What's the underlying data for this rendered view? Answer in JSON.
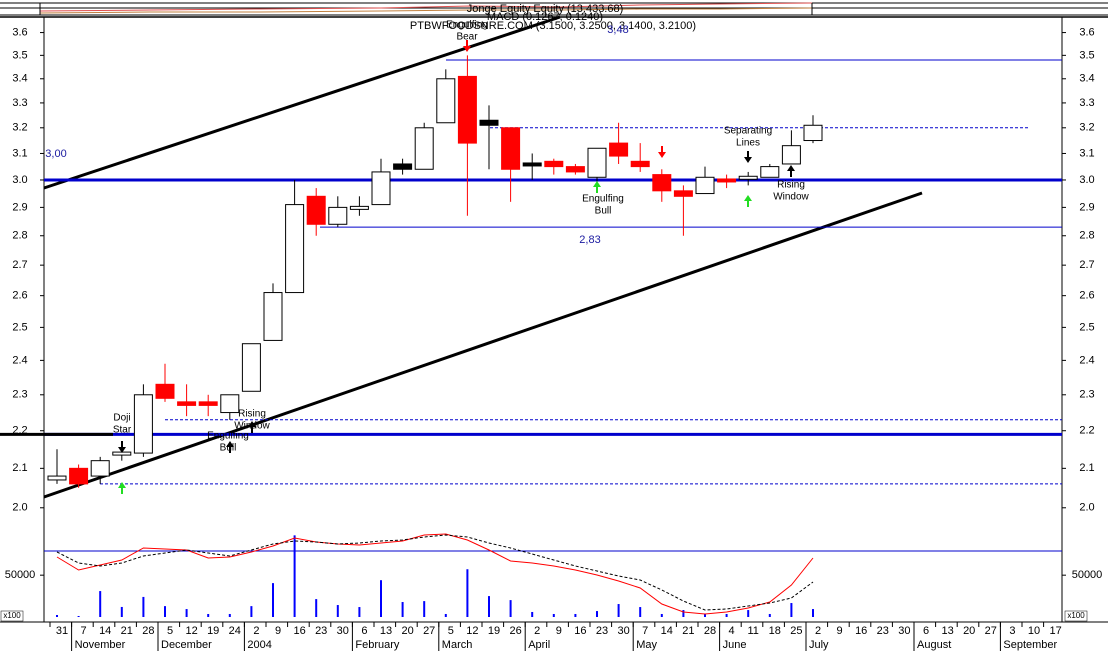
{
  "chart_data": {
    "type": "candlestick",
    "header": [
      "Jonge Equity Equity (13.433.68)",
      "MACD (0.1267, 0.1240)",
      "PTBWFOODSNRE.COM (3.1500, 3.2500, 3.1400, 3.2100)"
    ],
    "categories": [
      "31",
      "7",
      "14",
      "21",
      "28",
      "5",
      "12",
      "19",
      "24",
      "2",
      "9",
      "16",
      "23",
      "30",
      "6",
      "13",
      "20",
      "27",
      "5",
      "12",
      "19",
      "26",
      "2",
      "9",
      "16",
      "23",
      "30",
      "7",
      "14",
      "21",
      "28",
      "4",
      "11",
      "18",
      "25",
      "2",
      "9",
      "16",
      "23",
      "30",
      "6",
      "13",
      "20",
      "27",
      "3",
      "10",
      "17"
    ],
    "months": [
      "November",
      "December",
      "2004",
      "February",
      "March",
      "April",
      "May",
      "June",
      "July",
      "August",
      "September"
    ],
    "log_scale": true,
    "ylim": [
      1.97,
      3.67
    ],
    "yticks": [
      {
        "value": 2,
        "label": "2.0"
      },
      2.1,
      2.2,
      2.3,
      2.4,
      2.5,
      2.6,
      2.7,
      2.8,
      2.9,
      {
        "value": 3,
        "label": "3.0"
      },
      3.1,
      3.2,
      3.3,
      3.4,
      3.5,
      3.6
    ],
    "candles": {
      "open": [
        2.07,
        2.1,
        2.08,
        2.14,
        2.14,
        2.33,
        2.28,
        2.28,
        2.25,
        2.31,
        2.46,
        2.61,
        2.94,
        2.84,
        2.9,
        2.91,
        3.06,
        3.04,
        3.22,
        3.41,
        3.23,
        3.2,
        3.06,
        3.07,
        3.05,
        3.01,
        3.14,
        3.07,
        3.02,
        2.96,
        2.95,
        3.0,
        3.0,
        3.01,
        3.06,
        3.15,
        null,
        null,
        null,
        null,
        null,
        null,
        null,
        null,
        null,
        null,
        null
      ],
      "high": [
        2.15,
        2.11,
        2.13,
        2.16,
        2.33,
        2.39,
        2.33,
        2.3,
        2.3,
        2.45,
        2.64,
        3.0,
        2.97,
        2.94,
        2.94,
        3.08,
        3.08,
        3.22,
        3.44,
        3.5,
        3.29,
        3.2,
        3.1,
        3.08,
        3.06,
        3.12,
        3.22,
        3.14,
        3.04,
        2.98,
        3.05,
        3.02,
        3.03,
        3.06,
        3.19,
        3.25,
        null,
        null,
        null,
        null,
        null,
        null,
        null,
        null,
        null,
        null,
        null
      ],
      "low": [
        2.06,
        2.05,
        2.06,
        2.12,
        2.13,
        2.28,
        2.24,
        2.24,
        2.23,
        2.31,
        2.46,
        2.61,
        2.8,
        2.83,
        2.87,
        2.91,
        3.02,
        3.04,
        3.22,
        2.87,
        3.04,
        2.92,
        3.0,
        3.02,
        3.02,
        2.98,
        3.06,
        3.03,
        2.92,
        2.8,
        2.95,
        2.97,
        2.98,
        3.01,
        3.06,
        3.14,
        null,
        null,
        null,
        null,
        null,
        null,
        null,
        null,
        null,
        null,
        null
      ],
      "close": [
        2.08,
        2.06,
        2.12,
        2.14,
        2.3,
        2.29,
        2.27,
        2.27,
        2.3,
        2.45,
        2.61,
        2.91,
        2.84,
        2.9,
        2.9,
        3.03,
        3.04,
        3.2,
        3.4,
        3.14,
        3.21,
        3.04,
        3.06,
        3.05,
        3.03,
        3.12,
        3.09,
        3.05,
        2.96,
        2.94,
        3.01,
        2.99,
        3.01,
        3.05,
        3.13,
        3.21,
        null,
        null,
        null,
        null,
        null,
        null,
        null,
        null,
        null,
        null,
        null
      ],
      "colors": [
        "#ffffff",
        "#ff0000",
        "#ffffff",
        "#ffffff",
        "#ffffff",
        "#ff0000",
        "#ff0000",
        "#ff0000",
        "#ffffff",
        "#ffffff",
        "#ffffff",
        "#ffffff",
        "#ff0000",
        "#ffffff",
        "#ffffff",
        "#ffffff",
        "#000000",
        "#ffffff",
        "#ffffff",
        "#ff0000",
        "#000000",
        "#ff0000",
        "#000000",
        "#ff0000",
        "#ff0000",
        "#ffffff",
        "#ff0000",
        "#ff0000",
        "#ff0000",
        "#ff0000",
        "#ffffff",
        "#ff0000",
        "#ffffff",
        "#ffffff",
        "#ffffff",
        "#ffffff",
        null,
        null,
        null,
        null,
        null,
        null,
        null,
        null,
        null,
        null,
        null
      ]
    },
    "levels": [
      {
        "value": 3,
        "label": "3,00",
        "color": "#0000cc",
        "width": 3
      },
      {
        "value": 2.19,
        "color": "#0000cc",
        "width": 3
      },
      {
        "value": 3.48,
        "label": "3,48",
        "color": "#0000cc",
        "width": 1
      },
      {
        "value": 2.83,
        "label": "2,83",
        "color": "#0000cc",
        "width": 1
      },
      {
        "value": 3.2,
        "color": "#0000cc",
        "width": 1,
        "dashed": true
      },
      {
        "value": 2.23,
        "color": "#0000cc",
        "width": 1,
        "dashed": true
      },
      {
        "value": 2.06,
        "color": "#0000cc",
        "width": 1,
        "dashed": true
      }
    ],
    "annotations": [
      [
        "Doji",
        "Star"
      ],
      [
        "Engulfing",
        "Bull"
      ],
      [
        "Rising",
        "Window"
      ],
      [
        "Engulfing",
        "Bear"
      ],
      [
        "Engulfing",
        "Bull"
      ],
      [
        "Separating",
        "Lines"
      ],
      [
        "Rising",
        "Window"
      ]
    ],
    "volume": {
      "color": "#0000ff",
      "ylim": [
        0,
        104000
      ],
      "yticks": [
        50000
      ],
      "scale_label": "x100",
      "values": [
        2400,
        1200,
        31000,
        12000,
        24000,
        13000,
        9500,
        3600,
        3600,
        13000,
        40500,
        97600,
        21400,
        14300,
        11900,
        44000,
        17900,
        19000,
        3600,
        57100,
        25000,
        20200,
        6000,
        3600,
        3600,
        7100,
        15500,
        11900,
        3600,
        8300,
        3600,
        3600,
        8300,
        3600,
        16700,
        9500,
        null,
        null,
        null,
        null,
        null,
        null,
        null,
        null,
        null,
        null,
        null
      ]
    },
    "macd": {
      "ylim": [
        0,
        0.87
      ],
      "series": [
        {
          "color": "#ff0000",
          "values": [
            0.6,
            0.47,
            0.52,
            0.57,
            0.69,
            0.68,
            0.67,
            0.59,
            0.6,
            0.65,
            0.71,
            0.79,
            0.75,
            0.73,
            0.72,
            0.74,
            0.76,
            0.82,
            0.83,
            0.77,
            0.67,
            0.56,
            0.54,
            0.51,
            0.47,
            0.42,
            0.36,
            0.29,
            0.13,
            0.05,
            0.03,
            0.05,
            0.09,
            0.15,
            0.32,
            0.59,
            null,
            null,
            null,
            null,
            null,
            null,
            null,
            null,
            null,
            null,
            null
          ]
        },
        {
          "color": "#000000",
          "dashed": true,
          "values": [
            0.65,
            0.54,
            0.51,
            0.54,
            0.61,
            0.64,
            0.67,
            0.64,
            0.61,
            0.67,
            0.73,
            0.76,
            0.75,
            0.73,
            0.74,
            0.76,
            0.77,
            0.8,
            0.82,
            0.8,
            0.74,
            0.69,
            0.63,
            0.57,
            0.51,
            0.46,
            0.41,
            0.37,
            0.27,
            0.16,
            0.07,
            0.08,
            0.11,
            0.14,
            0.19,
            0.35,
            null,
            null,
            null,
            null,
            null,
            null,
            null,
            null,
            null,
            null,
            null
          ]
        }
      ]
    }
  }
}
